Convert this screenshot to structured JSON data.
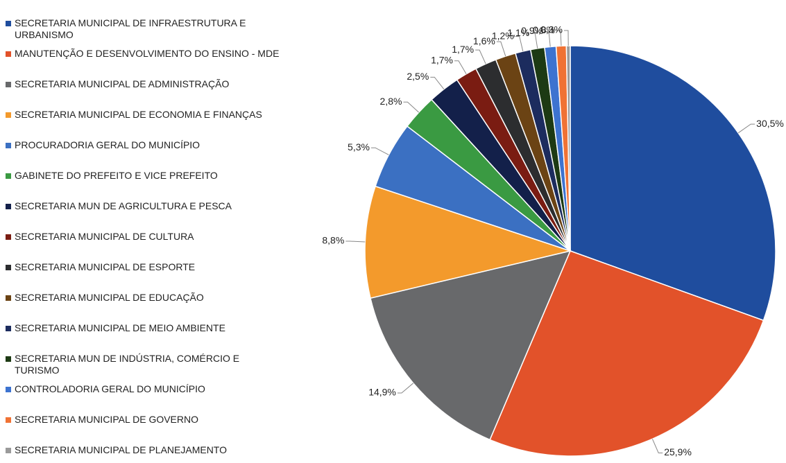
{
  "chart_data": {
    "type": "pie",
    "categories": [
      "SECRETARIA MUNICIPAL DE INFRAESTRUTURA E URBANISMO",
      "MANUTENÇÃO E DESENVOLVIMENTO DO ENSINO - MDE",
      "SECRETARIA MUNICIPAL DE ADMINISTRAÇÃO",
      "SECRETARIA MUNICIPAL DE ECONOMIA E FINANÇAS",
      "PROCURADORIA GERAL DO MUNICÍPIO",
      "GABINETE DO PREFEITO E VICE PREFEITO",
      "SECRETARIA MUN DE AGRICULTURA E PESCA",
      "SECRETARIA MUNICIPAL DE CULTURA",
      "SECRETARIA MUNICIPAL DE ESPORTE",
      "SECRETARIA MUNICIPAL DE EDUCAÇÃO",
      "SECRETARIA MUNICIPAL DE MEIO AMBIENTE",
      "SECRETARIA MUN DE INDÚSTRIA, COMÉRCIO E TURISMO",
      "CONTROLADORIA GERAL DO MUNICÍPIO",
      "SECRETARIA MUNICIPAL DE GOVERNO",
      "SECRETARIA MUNICIPAL DE PLANEJAMENTO"
    ],
    "values": [
      30.5,
      25.9,
      14.9,
      8.8,
      5.3,
      2.8,
      2.5,
      1.7,
      1.7,
      1.6,
      1.2,
      1.1,
      0.9,
      0.8,
      0.3
    ],
    "value_labels": [
      "30,5%",
      "25,9%",
      "14,9%",
      "8,8%",
      "5,3%",
      "2,8%",
      "2,5%",
      "1,7%",
      "1,7%",
      "1,6%",
      "1,2%",
      "1,1%",
      "0,9%",
      "0,8%",
      "0,3%"
    ],
    "colors": [
      "#1f4d9e",
      "#e2522a",
      "#68696b",
      "#f39a2c",
      "#3b70c2",
      "#3a9a42",
      "#13204a",
      "#7a1c12",
      "#2c2d2f",
      "#6b4314",
      "#1c2c5e",
      "#1d3a14",
      "#3d73d0",
      "#f07234",
      "#9a9a9a"
    ]
  }
}
